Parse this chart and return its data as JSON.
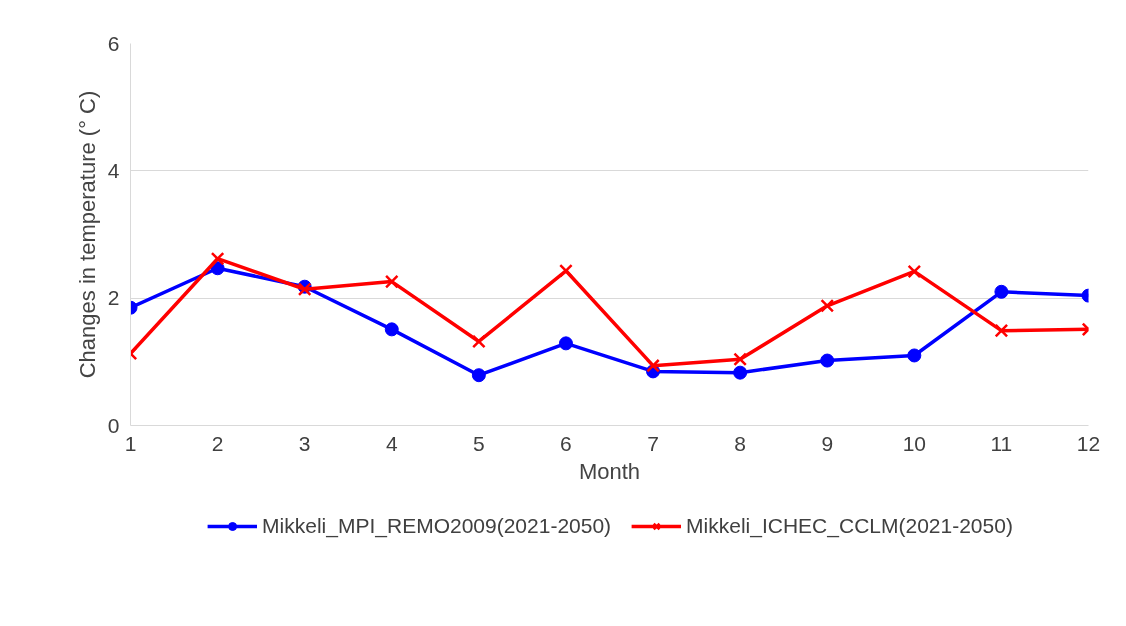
{
  "chart_data": {
    "type": "line",
    "xlabel": "Month",
    "ylabel": "Changes in temperature (° C)",
    "x": [
      1,
      2,
      3,
      4,
      5,
      6,
      7,
      8,
      9,
      10,
      11,
      12
    ],
    "xlim": [
      1,
      12
    ],
    "xticks": [
      1,
      2,
      3,
      4,
      5,
      6,
      7,
      8,
      9,
      10,
      11,
      12
    ],
    "ylim": [
      0,
      6
    ],
    "yticks": [
      0,
      2,
      4,
      6
    ],
    "grid": "y",
    "legend": "bottom",
    "line_style": "solid",
    "series": [
      {
        "name": "Mikkeli_MPI_REMO2009(2021-2050)",
        "color": "#0000ff",
        "marker": "circle",
        "values": [
          1.85,
          2.47,
          2.18,
          1.51,
          0.79,
          1.29,
          0.85,
          0.83,
          1.02,
          1.1,
          2.1,
          2.04
        ]
      },
      {
        "name": "Mikkeli_ICHEC_CCLM(2021-2050)",
        "color": "#ff0000",
        "marker": "cross",
        "values": [
          1.13,
          2.62,
          2.14,
          2.26,
          1.32,
          2.43,
          0.94,
          1.04,
          1.88,
          2.42,
          1.49,
          1.51
        ]
      }
    ]
  }
}
